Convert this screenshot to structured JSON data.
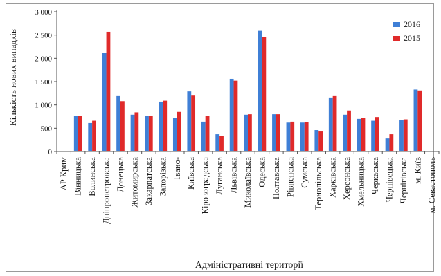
{
  "chart_data": {
    "type": "bar",
    "title": "",
    "ylabel": "Кількість нових випадків",
    "xlabel": "Адміністративні території",
    "ylim": [
      0,
      3000
    ],
    "yticks": [
      0,
      500,
      1000,
      1500,
      2000,
      2500,
      3000
    ],
    "ytick_labels": [
      "0",
      "500",
      "1 000",
      "1 500",
      "2 000",
      "2 500",
      "3 000"
    ],
    "categories": [
      "АР Крим",
      "Вінницька",
      "Волинська",
      "Дніпропетровська",
      "Донецька",
      "Житомирська",
      "Закарпатська",
      "Запорізька",
      "Івано-",
      "Київська",
      "Кіровоградська",
      "Луганська",
      "Львівська",
      "Миколаївська",
      "Одеська",
      "Полтавська",
      "Рівненська",
      "Сумська",
      "Тернопільська",
      "Харківська",
      "Херсонська",
      "Хмельницька",
      "Черкаська",
      "Чернівецька",
      "Чернігівська",
      "м. Київ",
      "м. Севастополь"
    ],
    "series": [
      {
        "name": "2016",
        "color": "#3f7fd6",
        "values": [
          0,
          770,
          610,
          2110,
          1190,
          790,
          770,
          1070,
          720,
          1290,
          640,
          370,
          1560,
          790,
          2590,
          800,
          620,
          620,
          460,
          1160,
          790,
          700,
          660,
          280,
          670,
          1330,
          0
        ]
      },
      {
        "name": "2015",
        "color": "#e02a2a",
        "values": [
          0,
          770,
          660,
          2570,
          1080,
          840,
          760,
          1090,
          850,
          1200,
          760,
          330,
          1520,
          800,
          2460,
          800,
          640,
          630,
          430,
          1190,
          880,
          720,
          740,
          370,
          690,
          1310,
          0
        ]
      }
    ],
    "legend_position": "top-right",
    "grid": false
  }
}
